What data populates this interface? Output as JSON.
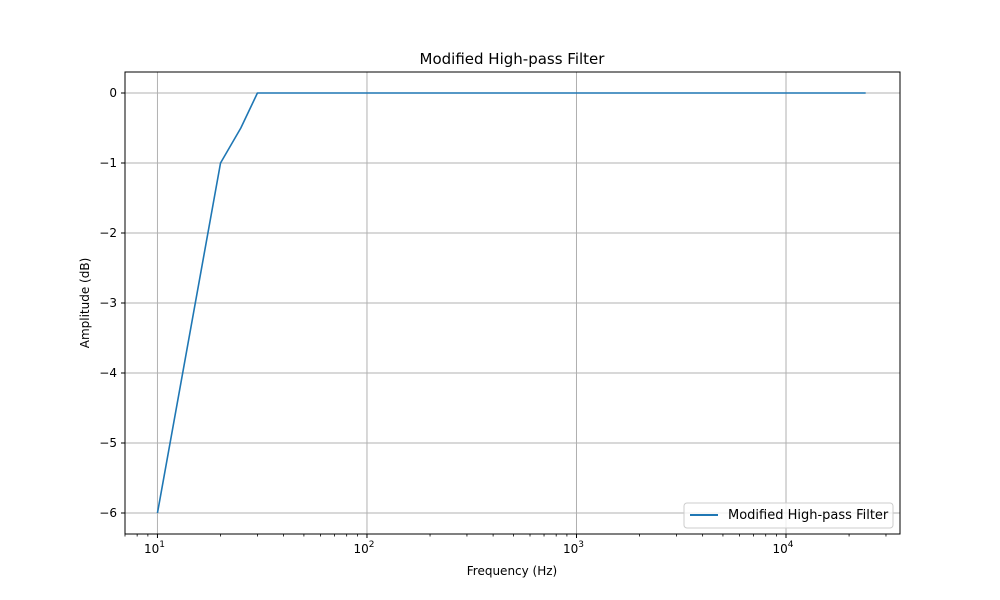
{
  "chart_data": {
    "type": "line",
    "title": "Modified High-pass Filter",
    "xlabel": "Frequency (Hz)",
    "ylabel": "Amplitude (dB)",
    "xscale": "log",
    "xlim": [
      7,
      35000
    ],
    "ylim": [
      -6.3,
      0.3
    ],
    "grid": true,
    "legend_position": "lower-right",
    "x_ticks": [
      {
        "value": 10,
        "base": "10",
        "exp": "1"
      },
      {
        "value": 100,
        "base": "10",
        "exp": "2"
      },
      {
        "value": 1000,
        "base": "10",
        "exp": "3"
      },
      {
        "value": 10000,
        "base": "10",
        "exp": "4"
      }
    ],
    "y_ticks": [
      {
        "value": 0,
        "label": "0"
      },
      {
        "value": -1,
        "label": "−1"
      },
      {
        "value": -2,
        "label": "−2"
      },
      {
        "value": -3,
        "label": "−3"
      },
      {
        "value": -4,
        "label": "−4"
      },
      {
        "value": -5,
        "label": "−5"
      },
      {
        "value": -6,
        "label": "−6"
      }
    ],
    "series": [
      {
        "name": "Modified High-pass Filter",
        "color": "#1f77b4",
        "x": [
          10,
          20,
          25,
          30,
          24000
        ],
        "y": [
          -6,
          -1,
          -0.5,
          0,
          0
        ]
      }
    ]
  }
}
